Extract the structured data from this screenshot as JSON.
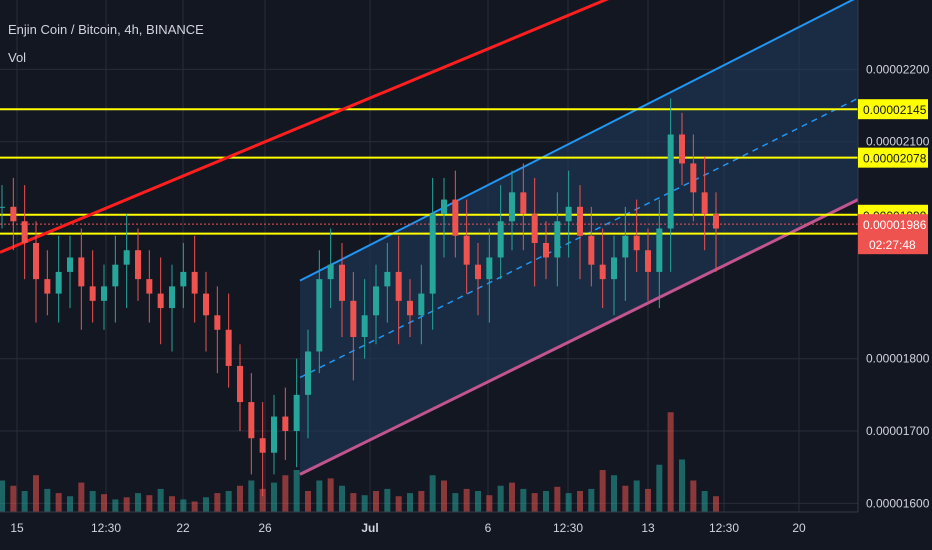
{
  "header": {
    "title": "Enjin Coin / Bitcoin, 4h, BINANCE",
    "volume_label": "Vol"
  },
  "colors": {
    "background": "#131722",
    "grid": "#2a2e39",
    "text": "#d1d4dc",
    "up_candle": "#26a69a",
    "down_candle": "#ef5350",
    "level_line": "#ffff00",
    "trend_line": "#ff1e1e",
    "channel_line": "#2196f3",
    "channel_lower": "#c2548f",
    "channel_fill": "#1e3a5c",
    "current_price": "#ef5350"
  },
  "chart_data": {
    "type": "candlestick",
    "title": "Enjin Coin / Bitcoin, 4h, BINANCE",
    "x_tick_labels": [
      "15",
      "12:30",
      "22",
      "26",
      "Jul",
      "6",
      "12:30",
      "13",
      "12:30",
      "20"
    ],
    "y_tick_labels": [
      "0.00002200",
      "0.00002100",
      "0.00001800",
      "0.00001700",
      "0.00001600"
    ],
    "y_ticks": [
      2.2e-05,
      2.1e-05,
      1.8e-05,
      1.7e-05,
      1.6e-05
    ],
    "ylim": [
      1.588e-05,
      2.296e-05
    ],
    "grid": true,
    "horizontal_levels": [
      {
        "label": "0.00002145",
        "value": 2.145e-05
      },
      {
        "label": "0.00002078",
        "value": 2.078e-05
      },
      {
        "label": "0.00001999",
        "value": 1.999e-05
      },
      {
        "label": "0.00001973",
        "value": 1.973e-05
      }
    ],
    "current_price": {
      "label": "0.00001986",
      "value": 1.986e-05,
      "countdown": "02:27:48"
    },
    "red_trendline": {
      "from_x": "13",
      "from_y": 1.947e-05,
      "to_x": "12:30",
      "to_y": 2.3e-05
    },
    "regression_channel": {
      "start_x": "26",
      "end_x": "20",
      "upper_start": 1.908e-05,
      "upper_end": 2.3e-05,
      "lower_start": 1.64e-05,
      "lower_end": 2.02e-05
    },
    "price_series": {
      "note": "close values sampled along the visible candles",
      "values": [
        2.01e-05,
        1.99e-05,
        1.96e-05,
        1.91e-05,
        1.89e-05,
        1.92e-05,
        1.94e-05,
        1.9e-05,
        1.88e-05,
        1.9e-05,
        1.93e-05,
        1.95e-05,
        1.91e-05,
        1.89e-05,
        1.87e-05,
        1.9e-05,
        1.92e-05,
        1.89e-05,
        1.86e-05,
        1.84e-05,
        1.79e-05,
        1.74e-05,
        1.69e-05,
        1.67e-05,
        1.72e-05,
        1.7e-05,
        1.75e-05,
        1.81e-05,
        1.91e-05,
        1.93e-05,
        1.88e-05,
        1.83e-05,
        1.86e-05,
        1.9e-05,
        1.92e-05,
        1.88e-05,
        1.86e-05,
        1.89e-05,
        2e-05,
        2.02e-05,
        1.97e-05,
        1.93e-05,
        1.91e-05,
        1.94e-05,
        1.99e-05,
        2.03e-05,
        2e-05,
        1.96e-05,
        1.94e-05,
        1.99e-05,
        2.01e-05,
        1.97e-05,
        1.93e-05,
        1.91e-05,
        1.94e-05,
        1.97e-05,
        1.95e-05,
        1.92e-05,
        1.98e-05,
        2.11e-05,
        2.07e-05,
        2.03e-05,
        2e-05,
        1.98e-05
      ]
    },
    "volume_series": {
      "note": "relative volume bars (0-1)",
      "values": [
        0.3,
        0.25,
        0.2,
        0.35,
        0.22,
        0.18,
        0.15,
        0.28,
        0.2,
        0.17,
        0.12,
        0.14,
        0.18,
        0.16,
        0.22,
        0.15,
        0.12,
        0.1,
        0.14,
        0.18,
        0.2,
        0.25,
        0.3,
        0.22,
        0.28,
        0.35,
        0.4,
        0.2,
        0.3,
        0.32,
        0.25,
        0.18,
        0.16,
        0.2,
        0.22,
        0.15,
        0.18,
        0.2,
        0.35,
        0.3,
        0.18,
        0.22,
        0.2,
        0.16,
        0.25,
        0.28,
        0.22,
        0.18,
        0.2,
        0.24,
        0.18,
        0.2,
        0.22,
        0.4,
        0.35,
        0.25,
        0.3,
        0.22,
        0.45,
        0.95,
        0.5,
        0.3,
        0.2,
        0.15
      ]
    }
  }
}
